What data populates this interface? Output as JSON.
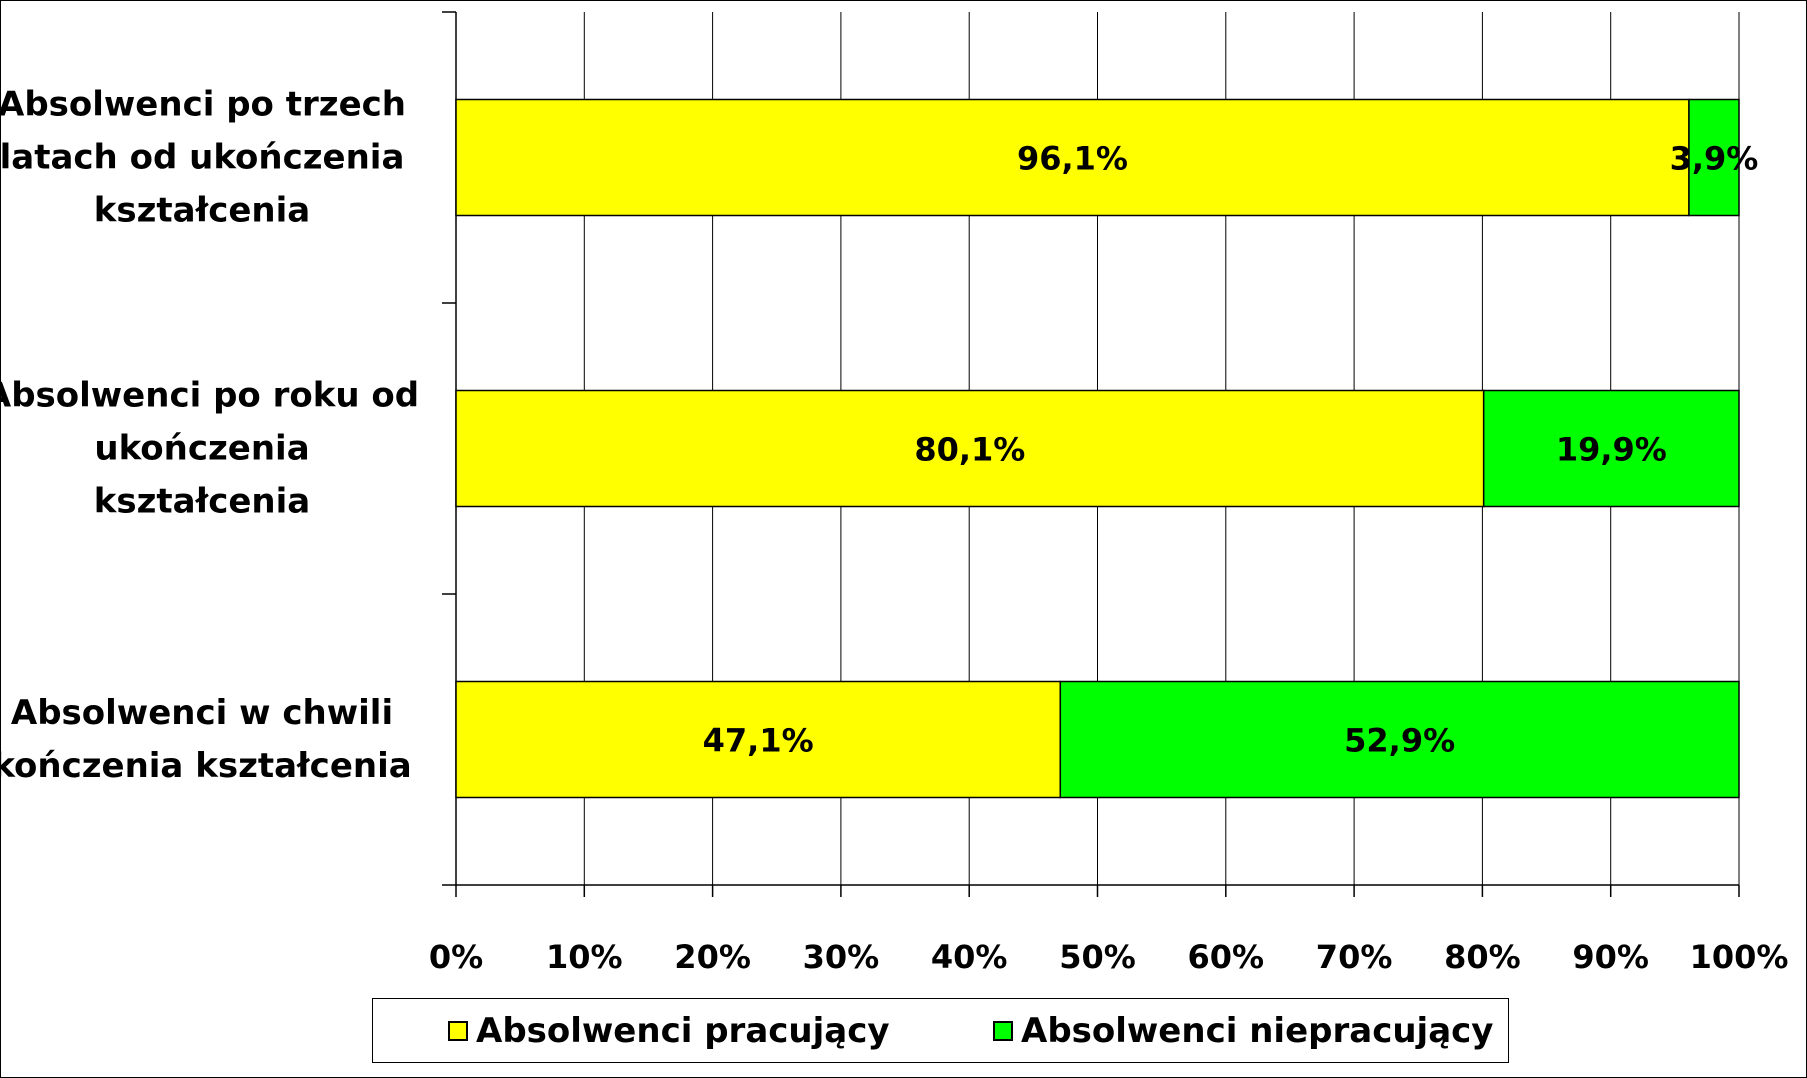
{
  "chart_data": {
    "type": "bar",
    "orientation": "horizontal",
    "stacked": "percent",
    "categories": [
      "Absolwenci po trzech latach od ukończenia kształcenia",
      "Absolwenci po roku od ukończenia kształcenia",
      "Absolwenci w chwili kończenia kształcenia"
    ],
    "category_lines": [
      [
        "Absolwenci po trzech",
        "latach od ukończenia",
        "kształcenia"
      ],
      [
        "Absolwenci po roku od",
        "ukończenia kształcenia"
      ],
      [
        "Absolwenci w chwili",
        "kończenia kształcenia"
      ]
    ],
    "series": [
      {
        "name": "Absolwenci pracujący",
        "values": [
          96.1,
          80.1,
          47.1
        ],
        "labels": [
          "96,1%",
          "80,1%",
          "47,1%"
        ],
        "color": "#ffff00"
      },
      {
        "name": "Absolwenci niepracujący",
        "values": [
          3.9,
          19.9,
          52.9
        ],
        "labels": [
          "3,9%",
          "19,9%",
          "52,9%"
        ],
        "color": "#00ff00"
      }
    ],
    "x_ticks": [
      "0%",
      "10%",
      "20%",
      "30%",
      "40%",
      "50%",
      "60%",
      "70%",
      "80%",
      "90%",
      "100%"
    ],
    "xlim": [
      0,
      100
    ],
    "grid": true,
    "legend_position": "bottom"
  }
}
